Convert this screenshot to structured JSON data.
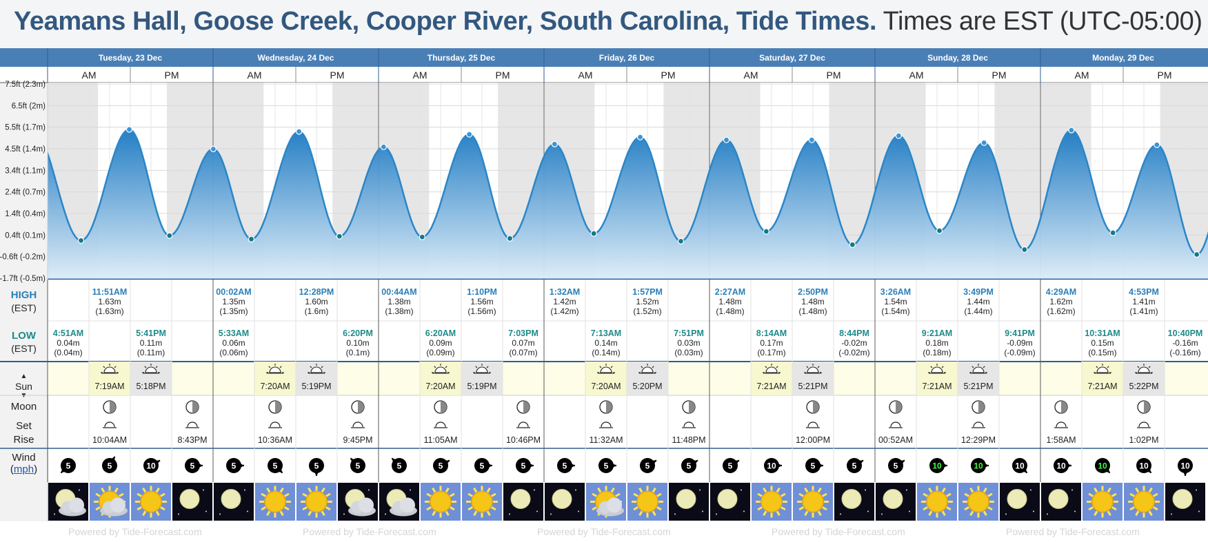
{
  "title": "Yeamans Hall, Goose Creek, Cooper River, South Carolina, Tide Times.",
  "timezone_note": "Times are EST (UTC-05:00)",
  "days": [
    {
      "label": "Tuesday, 23 Dec"
    },
    {
      "label": "Wednesday, 24 Dec"
    },
    {
      "label": "Thursday, 25 Dec"
    },
    {
      "label": "Friday, 26 Dec"
    },
    {
      "label": "Saturday, 27 Dec"
    },
    {
      "label": "Sunday, 28 Dec"
    },
    {
      "label": "Monday, 29 Dec"
    }
  ],
  "am_label": "AM",
  "pm_label": "PM",
  "y_axis_labels": [
    "7.5ft (2.3m)",
    "6.5ft (2m)",
    "5.5ft (1.7m)",
    "4.5ft (1.4m)",
    "3.4ft (1.1m)",
    "2.4ft (0.7m)",
    "1.4ft (0.4m)",
    "0.4ft (0.1m)",
    "-0.6ft (-0.2m)",
    "-1.7ft (-0.5m)"
  ],
  "rows": {
    "high_label": "HIGH",
    "high_tz": "(EST)",
    "low_label": "LOW",
    "low_tz": "(EST)",
    "sun_label": "Sun",
    "moon_label": "Moon",
    "set_label": "Set",
    "rise_label": "Rise",
    "wind_label": "Wind",
    "wind_unit": "mph"
  },
  "chart_data": {
    "type": "area",
    "title": "Yeamans Hall, Goose Creek, Cooper River, South Carolina, Tide Times.",
    "y_unit": "m",
    "ylim": [
      -0.5,
      2.3
    ],
    "tides": [
      {
        "day": 0,
        "kind": "low",
        "time": "4:51AM",
        "m": "0.04m",
        "alt": "(0.04m)",
        "v": 0.04
      },
      {
        "day": 0,
        "kind": "high",
        "time": "11:51AM",
        "m": "1.63m",
        "alt": "(1.63m)",
        "v": 1.63
      },
      {
        "day": 0,
        "kind": "low",
        "time": "5:41PM",
        "m": "0.11m",
        "alt": "(0.11m)",
        "v": 0.11
      },
      {
        "day": 1,
        "kind": "high",
        "time": "00:02AM",
        "m": "1.35m",
        "alt": "(1.35m)",
        "v": 1.35
      },
      {
        "day": 1,
        "kind": "low",
        "time": "5:33AM",
        "m": "0.06m",
        "alt": "(0.06m)",
        "v": 0.06
      },
      {
        "day": 1,
        "kind": "high",
        "time": "12:28PM",
        "m": "1.60m",
        "alt": "(1.6m)",
        "v": 1.6
      },
      {
        "day": 1,
        "kind": "low",
        "time": "6:20PM",
        "m": "0.10m",
        "alt": "(0.1m)",
        "v": 0.1
      },
      {
        "day": 2,
        "kind": "high",
        "time": "00:44AM",
        "m": "1.38m",
        "alt": "(1.38m)",
        "v": 1.38
      },
      {
        "day": 2,
        "kind": "low",
        "time": "6:20AM",
        "m": "0.09m",
        "alt": "(0.09m)",
        "v": 0.09
      },
      {
        "day": 2,
        "kind": "high",
        "time": "1:10PM",
        "m": "1.56m",
        "alt": "(1.56m)",
        "v": 1.56
      },
      {
        "day": 2,
        "kind": "low",
        "time": "7:03PM",
        "m": "0.07m",
        "alt": "(0.07m)",
        "v": 0.07
      },
      {
        "day": 3,
        "kind": "high",
        "time": "1:32AM",
        "m": "1.42m",
        "alt": "(1.42m)",
        "v": 1.42
      },
      {
        "day": 3,
        "kind": "low",
        "time": "7:13AM",
        "m": "0.14m",
        "alt": "(0.14m)",
        "v": 0.14
      },
      {
        "day": 3,
        "kind": "high",
        "time": "1:57PM",
        "m": "1.52m",
        "alt": "(1.52m)",
        "v": 1.52
      },
      {
        "day": 3,
        "kind": "low",
        "time": "7:51PM",
        "m": "0.03m",
        "alt": "(0.03m)",
        "v": 0.03
      },
      {
        "day": 4,
        "kind": "high",
        "time": "2:27AM",
        "m": "1.48m",
        "alt": "(1.48m)",
        "v": 1.48
      },
      {
        "day": 4,
        "kind": "low",
        "time": "8:14AM",
        "m": "0.17m",
        "alt": "(0.17m)",
        "v": 0.17
      },
      {
        "day": 4,
        "kind": "high",
        "time": "2:50PM",
        "m": "1.48m",
        "alt": "(1.48m)",
        "v": 1.48
      },
      {
        "day": 4,
        "kind": "low",
        "time": "8:44PM",
        "m": "-0.02m",
        "alt": "(-0.02m)",
        "v": -0.02
      },
      {
        "day": 5,
        "kind": "high",
        "time": "3:26AM",
        "m": "1.54m",
        "alt": "(1.54m)",
        "v": 1.54
      },
      {
        "day": 5,
        "kind": "low",
        "time": "9:21AM",
        "m": "0.18m",
        "alt": "(0.18m)",
        "v": 0.18
      },
      {
        "day": 5,
        "kind": "high",
        "time": "3:49PM",
        "m": "1.44m",
        "alt": "(1.44m)",
        "v": 1.44
      },
      {
        "day": 5,
        "kind": "low",
        "time": "9:41PM",
        "m": "-0.09m",
        "alt": "(-0.09m)",
        "v": -0.09
      },
      {
        "day": 6,
        "kind": "high",
        "time": "4:29AM",
        "m": "1.62m",
        "alt": "(1.62m)",
        "v": 1.62
      },
      {
        "day": 6,
        "kind": "low",
        "time": "10:31AM",
        "m": "0.15m",
        "alt": "(0.15m)",
        "v": 0.15
      },
      {
        "day": 6,
        "kind": "high",
        "time": "4:53PM",
        "m": "1.41m",
        "alt": "(1.41m)",
        "v": 1.41
      },
      {
        "day": 6,
        "kind": "low",
        "time": "10:40PM",
        "m": "-0.16m",
        "alt": "(-0.16m)",
        "v": -0.16
      }
    ]
  },
  "sun": [
    {
      "rise": "7:19AM",
      "set": "5:18PM"
    },
    {
      "rise": "7:20AM",
      "set": "5:19PM"
    },
    {
      "rise": "7:20AM",
      "set": "5:19PM"
    },
    {
      "rise": "7:20AM",
      "set": "5:20PM"
    },
    {
      "rise": "7:21AM",
      "set": "5:21PM"
    },
    {
      "rise": "7:21AM",
      "set": "5:21PM"
    },
    {
      "rise": "7:21AM",
      "set": "5:22PM"
    }
  ],
  "moon_events": [
    {
      "day": 0,
      "cell": 1,
      "type": "set",
      "time": "10:04AM"
    },
    {
      "day": 0,
      "cell": 3,
      "type": "rise",
      "time": "8:43PM"
    },
    {
      "day": 1,
      "cell": 1,
      "type": "set",
      "time": "10:36AM"
    },
    {
      "day": 1,
      "cell": 3,
      "type": "rise",
      "time": "9:45PM"
    },
    {
      "day": 2,
      "cell": 1,
      "type": "set",
      "time": "11:05AM"
    },
    {
      "day": 2,
      "cell": 3,
      "type": "rise",
      "time": "10:46PM"
    },
    {
      "day": 3,
      "cell": 1,
      "type": "set",
      "time": "11:32AM"
    },
    {
      "day": 3,
      "cell": 3,
      "type": "rise",
      "time": "11:48PM"
    },
    {
      "day": 4,
      "cell": 2,
      "type": "set",
      "time": "12:00PM"
    },
    {
      "day": 5,
      "cell": 0,
      "type": "rise",
      "time": "00:52AM"
    },
    {
      "day": 5,
      "cell": 2,
      "type": "set",
      "time": "12:29PM"
    },
    {
      "day": 6,
      "cell": 0,
      "type": "rise",
      "time": "1:58AM"
    },
    {
      "day": 6,
      "cell": 2,
      "type": "set",
      "time": "1:02PM"
    }
  ],
  "wind": [
    5,
    5,
    10,
    5,
    5,
    5,
    5,
    5,
    5,
    5,
    5,
    5,
    5,
    5,
    5,
    5,
    5,
    10,
    5,
    5,
    5,
    10,
    10,
    10,
    10,
    10,
    10,
    10
  ],
  "wind_green": [
    21,
    22,
    25
  ],
  "wind_dirs": [
    225,
    30,
    60,
    90,
    90,
    135,
    180,
    315,
    315,
    60,
    90,
    90,
    90,
    90,
    60,
    60,
    60,
    90,
    90,
    60,
    60,
    90,
    90,
    135,
    90,
    135,
    135,
    180
  ],
  "weather": [
    "moon-cloud",
    "sun-cloud",
    "sun",
    "moon",
    "moon",
    "sun",
    "sun",
    "moon-cloud",
    "moon-cloud",
    "sun",
    "sun",
    "moon",
    "moon",
    "sun-cloud",
    "sun",
    "moon",
    "moon",
    "sun",
    "sun",
    "moon",
    "moon",
    "sun",
    "sun",
    "moon",
    "moon",
    "sun",
    "sun",
    "moon"
  ],
  "footer": "Powered by Tide-Forecast.com"
}
